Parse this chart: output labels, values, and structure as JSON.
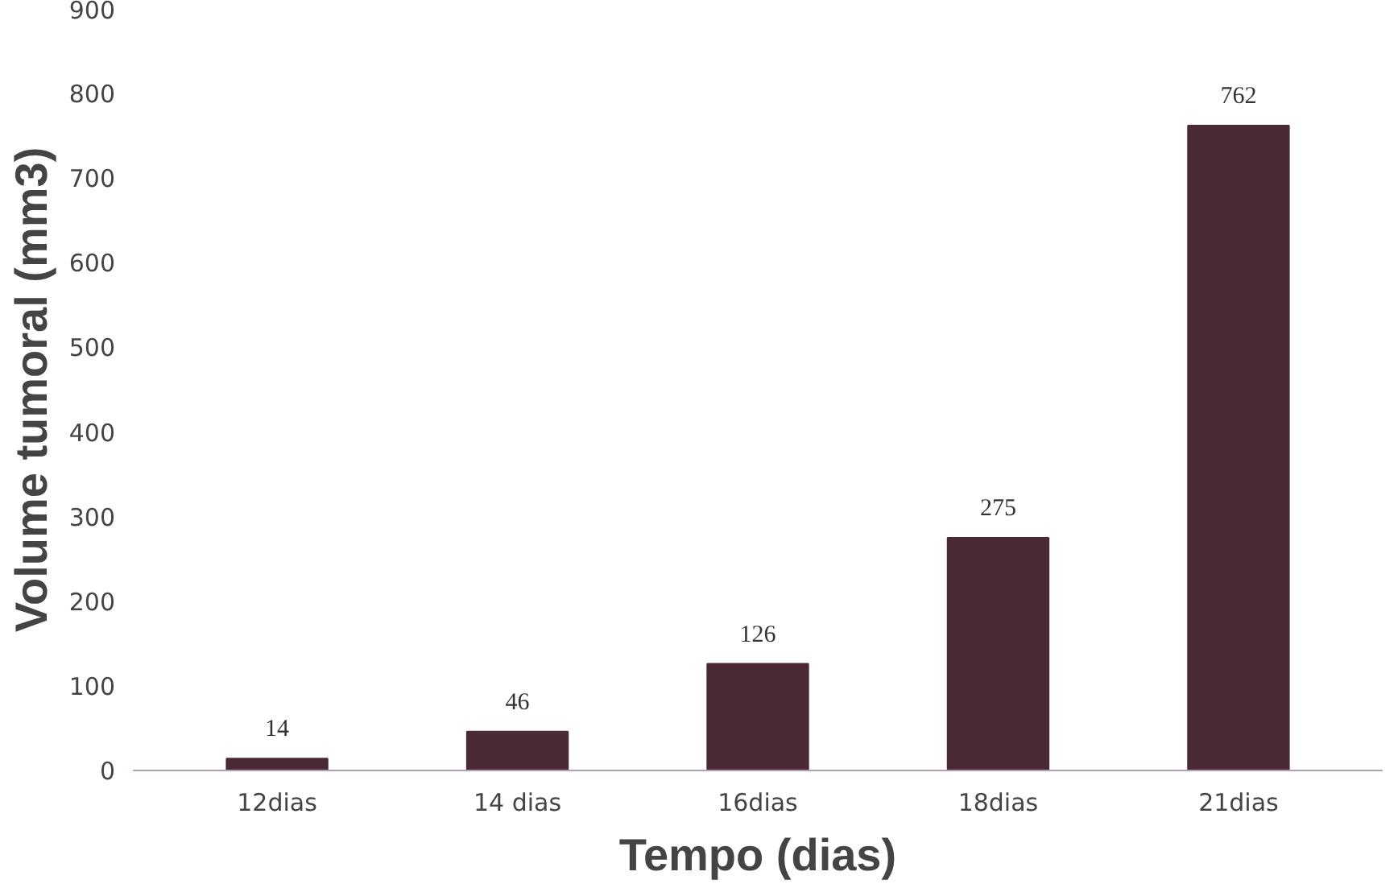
{
  "chart_data": {
    "type": "bar",
    "xlabel": "Tempo (dias)",
    "ylabel": "Volume tumoral (mm3)",
    "categories": [
      "12dias",
      "14 dias",
      "16dias",
      "18dias",
      "21dias"
    ],
    "values": [
      14,
      46,
      126,
      275,
      762
    ],
    "color": "#4a2a35",
    "ylim": [
      0,
      900
    ],
    "yticks": [
      0,
      100,
      200,
      300,
      400,
      500,
      600,
      700,
      800,
      900
    ],
    "data_labels": true,
    "grid": false
  }
}
